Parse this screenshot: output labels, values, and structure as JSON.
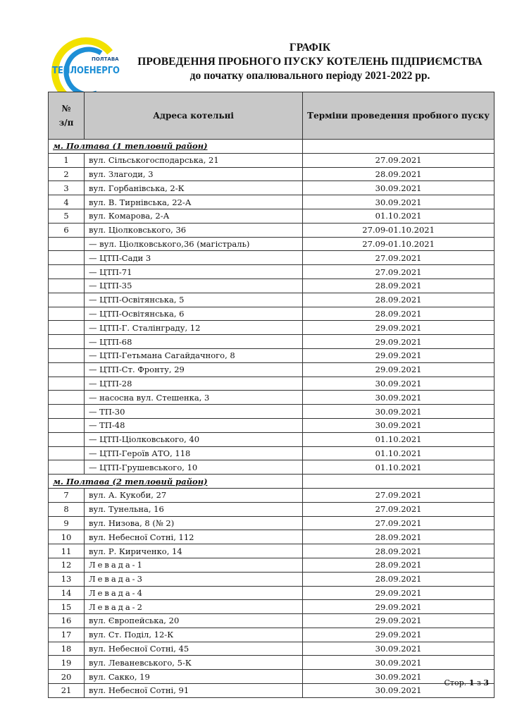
{
  "logo": {
    "top_text": "ПОЛТАВА",
    "main_text": "ТЕПЛОЕНЕРГО",
    "colors": {
      "yellow": "#f2e100",
      "blue": "#1d8fd6"
    }
  },
  "title": {
    "line1": "ГРАФІК",
    "line2": "ПРОВЕДЕННЯ ПРОБНОГО ПУСКУ КОТЕЛЕНЬ ПІДПРИЄМСТВА",
    "line3": "до початку опалювального періоду 2021-2022 рр."
  },
  "table": {
    "headers": {
      "num": "№\nз/п",
      "address": "Адреса котельні",
      "dates": "Терміни проведення пробного пуску"
    },
    "rows": [
      {
        "type": "group",
        "address": "м. Полтава (1 тепловий район)"
      },
      {
        "num": "1",
        "address": "вул. Сільськогосподарська, 21",
        "date": "27.09.2021"
      },
      {
        "num": "2",
        "address": "вул. Злагоди, 3",
        "date": "28.09.2021"
      },
      {
        "num": "3",
        "address": "вул. Горбанівська, 2-К",
        "date": "30.09.2021"
      },
      {
        "num": "4",
        "address": "вул. В. Тирнівська, 22-А",
        "date": "30.09.2021"
      },
      {
        "num": "5",
        "address": "вул. Комарова, 2-А",
        "date": "01.10.2021"
      },
      {
        "num": "6",
        "address": "вул. Ціолковського, 36",
        "date": "27.09-01.10.2021"
      },
      {
        "num": "",
        "address": "— вул. Ціолковського,36 (магістраль)",
        "date": "27.09-01.10.2021"
      },
      {
        "num": "",
        "address": "— ЦТП-Сади 3",
        "date": "27.09.2021"
      },
      {
        "num": "",
        "address": "— ЦТП-71",
        "date": "27.09.2021"
      },
      {
        "num": "",
        "address": "— ЦТП-35",
        "date": "28.09.2021"
      },
      {
        "num": "",
        "address": "— ЦТП-Освітянська, 5",
        "date": "28.09.2021"
      },
      {
        "num": "",
        "address": "— ЦТП-Освітянська, 6",
        "date": "28.09.2021"
      },
      {
        "num": "",
        "address": "— ЦТП-Г. Сталінграду, 12",
        "date": "29.09.2021"
      },
      {
        "num": "",
        "address": "— ЦТП-68",
        "date": "29.09.2021"
      },
      {
        "num": "",
        "address": "— ЦТП-Гетьмана Сагайдачного, 8",
        "date": "29.09.2021"
      },
      {
        "num": "",
        "address": "— ЦТП-Ст. Фронту, 29",
        "date": "29.09.2021"
      },
      {
        "num": "",
        "address": "— ЦТП-28",
        "date": "30.09.2021"
      },
      {
        "num": "",
        "address": "— насосна вул. Стешенка, 3",
        "date": "30.09.2021"
      },
      {
        "num": "",
        "address": "— ТП-30",
        "date": "30.09.2021"
      },
      {
        "num": "",
        "address": "— ТП-48",
        "date": "30.09.2021"
      },
      {
        "num": "",
        "address": "— ЦТП-Ціолковського, 40",
        "date": "01.10.2021"
      },
      {
        "num": "",
        "address": "— ЦТП-Героїв АТО, 118",
        "date": "01.10.2021"
      },
      {
        "num": "",
        "address": "— ЦТП-Грушевського, 10",
        "date": "01.10.2021"
      },
      {
        "type": "group",
        "address": "м. Полтава (2 тепловий район)"
      },
      {
        "num": "7",
        "address": "вул. А. Кукоби, 27",
        "date": "27.09.2021"
      },
      {
        "num": "8",
        "address": "вул. Тунельна, 16",
        "date": "27.09.2021"
      },
      {
        "num": "9",
        "address": "вул. Низова, 8 (№ 2)",
        "date": "27.09.2021"
      },
      {
        "num": "10",
        "address": "вул. Небесної Сотні, 112",
        "date": "28.09.2021"
      },
      {
        "num": "11",
        "address": "вул. Р. Кириченко, 14",
        "date": "28.09.2021"
      },
      {
        "num": "12",
        "address": "Левада-1",
        "date": "28.09.2021",
        "spaced": true
      },
      {
        "num": "13",
        "address": "Левада-3",
        "date": "28.09.2021",
        "spaced": true
      },
      {
        "num": "14",
        "address": "Левада-4",
        "date": "29.09.2021",
        "spaced": true
      },
      {
        "num": "15",
        "address": "Левада-2",
        "date": "29.09.2021",
        "spaced": true
      },
      {
        "num": "16",
        "address": "вул. Європейська, 20",
        "date": "29.09.2021"
      },
      {
        "num": "17",
        "address": "вул. Ст. Поділ, 12-К",
        "date": "29.09.2021"
      },
      {
        "num": "18",
        "address": "вул. Небесної Сотні, 45",
        "date": "30.09.2021"
      },
      {
        "num": "19",
        "address": "вул. Леваневського, 5-К",
        "date": "30.09.2021"
      },
      {
        "num": "20",
        "address": "вул. Сакко, 19",
        "date": "30.09.2021"
      },
      {
        "num": "21",
        "address": "вул. Небесної Сотні, 91",
        "date": "30.09.2021"
      }
    ]
  },
  "footer": {
    "prefix": "Стор.",
    "page": "1",
    "sep": "з",
    "total": "3"
  }
}
